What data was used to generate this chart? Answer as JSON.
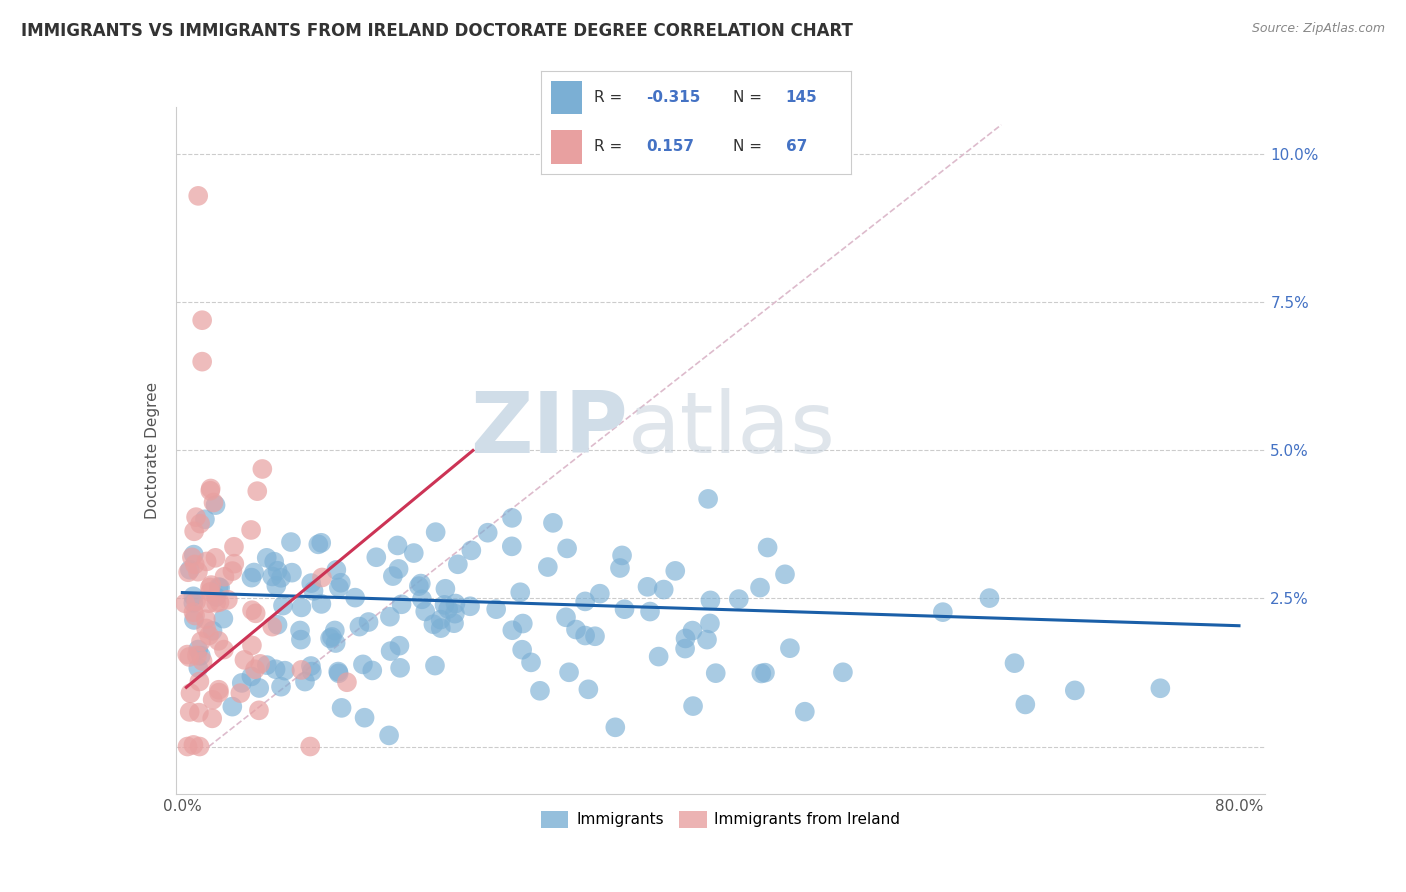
{
  "title": "IMMIGRANTS VS IMMIGRANTS FROM IRELAND DOCTORATE DEGREE CORRELATION CHART",
  "source": "Source: ZipAtlas.com",
  "ylabel": "Doctorate Degree",
  "color_blue": "#7bafd4",
  "color_blue_line": "#1a5fa8",
  "color_pink": "#e8a0a0",
  "color_pink_line": "#cc3355",
  "color_diag": "#ddbbbb",
  "legend_label1": "Immigrants",
  "legend_label2": "Immigrants from Ireland",
  "watermark_zip": "ZIP",
  "watermark_atlas": "atlas"
}
